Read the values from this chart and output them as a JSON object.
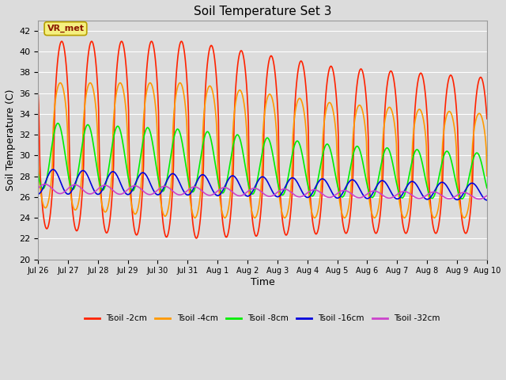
{
  "title": "Soil Temperature Set 3",
  "xlabel": "Time",
  "ylabel": "Soil Temperature (C)",
  "ylim": [
    20,
    43
  ],
  "yticks": [
    20,
    22,
    24,
    26,
    28,
    30,
    32,
    34,
    36,
    38,
    40,
    42
  ],
  "bg_color": "#dcdcdc",
  "grid_color": "#ffffff",
  "annotation_text": "VR_met",
  "annotation_fg": "#8b1a00",
  "annotation_bg": "#f5f080",
  "annotation_border": "#b8a000",
  "lines": {
    "Tsoil -2cm": {
      "color": "#ff2200",
      "lw": 1.2
    },
    "Tsoil -4cm": {
      "color": "#ff9900",
      "lw": 1.2
    },
    "Tsoil -8cm": {
      "color": "#00ee00",
      "lw": 1.2
    },
    "Tsoil -16cm": {
      "color": "#0000dd",
      "lw": 1.2
    },
    "Tsoil -32cm": {
      "color": "#cc44cc",
      "lw": 1.2
    }
  },
  "tick_labels": [
    "Jul 26",
    "Jul 27",
    "Jul 28",
    "Jul 29",
    "Jul 30",
    "Jul 31",
    "Aug 1",
    "Aug 2",
    "Aug 3",
    "Aug 4",
    "Aug 5",
    "Aug 6",
    "Aug 7",
    "Aug 8",
    "Aug 9",
    "Aug 10"
  ]
}
